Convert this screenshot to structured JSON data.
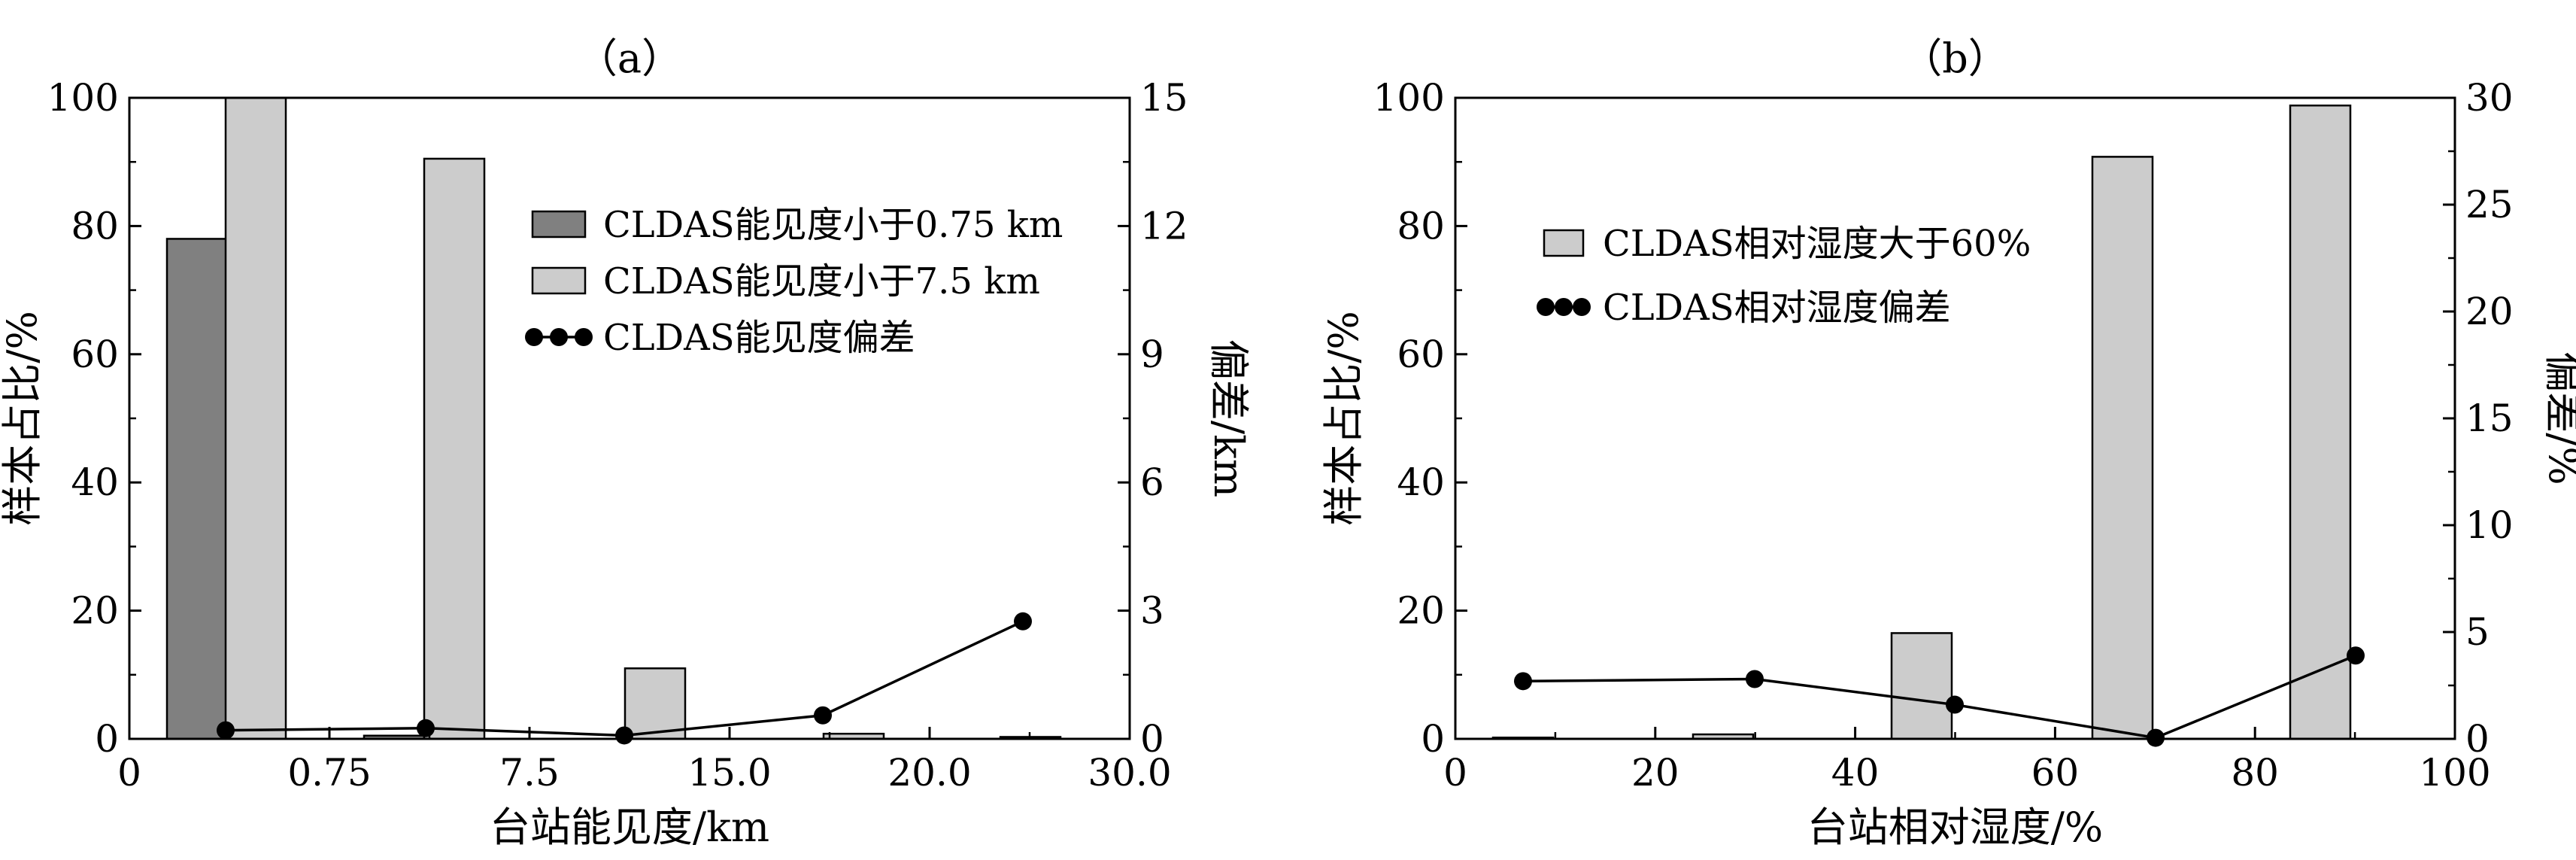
{
  "chart_data": [
    {
      "type": "bar",
      "title": "（a）",
      "xlabel": "台站能见度/km",
      "ylabel": "样本占比/%",
      "y2label": "偏差/km",
      "x_tick_labels": [
        "0",
        "0.75",
        "7.5",
        "15.0",
        "20.0",
        "30.0"
      ],
      "categories": [
        "0–0.75",
        "0.75–7.5",
        "7.5–15.0",
        "15.0–20.0",
        "20.0–30.0"
      ],
      "ylim": [
        0,
        100
      ],
      "yticks": [
        0,
        20,
        40,
        60,
        80,
        100
      ],
      "y2lim": [
        0,
        15
      ],
      "y2ticks": [
        0,
        3,
        6,
        9,
        12,
        15
      ],
      "series": [
        {
          "name": "CLDAS能见度小于0.75 km",
          "kind": "bar",
          "color": "#808080",
          "values": [
            78,
            0.5,
            0,
            0,
            0
          ]
        },
        {
          "name": "CLDAS能见度小于7.5 km",
          "kind": "bar",
          "color": "#cccccc",
          "values": [
            100,
            90.5,
            11,
            0.8,
            0.3
          ]
        },
        {
          "name": "CLDAS能见度偏差",
          "kind": "line",
          "axis": "right",
          "color": "#000000",
          "values": [
            0.2,
            0.25,
            0.08,
            0.55,
            2.75
          ]
        }
      ],
      "legend": "top-right",
      "grid": false
    },
    {
      "type": "bar",
      "title": "（b）",
      "xlabel": "台站相对湿度/%",
      "ylabel": "样本占比/%",
      "y2label": "偏差/%",
      "x_tick_labels": [
        "0",
        "20",
        "40",
        "60",
        "80",
        "100"
      ],
      "categories": [
        "0–20",
        "20–40",
        "40–60",
        "60–80",
        "80–100"
      ],
      "ylim": [
        0,
        100
      ],
      "yticks": [
        0,
        20,
        40,
        60,
        80,
        100
      ],
      "y2lim": [
        0,
        30
      ],
      "y2ticks": [
        0,
        5,
        10,
        15,
        20,
        25,
        30
      ],
      "series": [
        {
          "name": "CLDAS相对湿度大于60%",
          "kind": "bar",
          "color": "#cccccc",
          "values": [
            0.2,
            0.7,
            16.5,
            90.8,
            98.8
          ]
        },
        {
          "name": "CLDAS相对湿度偏差",
          "kind": "line",
          "axis": "right",
          "color": "#000000",
          "values": [
            2.7,
            2.8,
            1.6,
            0.05,
            3.9
          ]
        }
      ],
      "legend": "top-left",
      "grid": false
    }
  ]
}
